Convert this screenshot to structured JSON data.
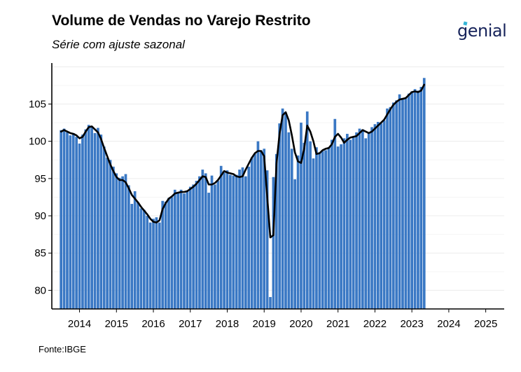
{
  "header": {
    "title": "Volume de Vendas no Varejo Restrito",
    "subtitle": "Série com ajuste sazonal",
    "logo_text": "genial"
  },
  "footer": {
    "source": "Fonte:IBGE"
  },
  "colors": {
    "bar": "#3a78c4",
    "line": "#000000",
    "logo": "#16235a",
    "logo_accent": "#33b5d6"
  },
  "chart_data": {
    "type": "bar",
    "title": "Volume de Vendas no Varejo Restrito",
    "subtitle": "Série com ajuste sazonal",
    "xlabel": "",
    "ylabel": "",
    "ylim": [
      77.5,
      110.5
    ],
    "xlim": [
      2013.25,
      2025.5
    ],
    "y_ticks": [
      80,
      85,
      90,
      95,
      100,
      105
    ],
    "x_ticks": [
      2014,
      2015,
      2016,
      2017,
      2018,
      2019,
      2020,
      2021,
      2022,
      2023,
      2024,
      2025
    ],
    "grid": true,
    "legend": "none",
    "start": "2013-07",
    "series": [
      {
        "type": "bar",
        "values": [
          101.5,
          101.7,
          101.2,
          100.8,
          101.1,
          100.6,
          99.7,
          100.9,
          101.6,
          102.2,
          102.0,
          101.1,
          101.8,
          100.9,
          99.3,
          97.8,
          97.5,
          96.6,
          95.7,
          95.1,
          95.3,
          95.6,
          94.1,
          91.6,
          93.3,
          91.8,
          91.0,
          90.8,
          90.0,
          89.1,
          89.6,
          89.8,
          89.1,
          92.0,
          91.9,
          92.4,
          92.5,
          93.5,
          93.1,
          93.5,
          93.0,
          93.3,
          93.9,
          94.2,
          94.7,
          95.3,
          96.2,
          95.7,
          93.1,
          95.4,
          94.2,
          94.7,
          96.7,
          95.8,
          96.1,
          95.5,
          95.4,
          95.5,
          96.2,
          96.5,
          95.3,
          96.6,
          97.8,
          98.3,
          100.0,
          98.8,
          99.0,
          96.1,
          79.1,
          95.2,
          98.3,
          102.4,
          104.4,
          103.8,
          101.2,
          99.0,
          94.9,
          98.1,
          102.5,
          99.8,
          104.0,
          100.0,
          97.7,
          99.2,
          98.5,
          98.7,
          98.8,
          99.2,
          100.2,
          103.0,
          99.3,
          99.6,
          100.4,
          101.0,
          100.2,
          100.5,
          101.2,
          101.7,
          101.6,
          100.4,
          101.1,
          101.9,
          102.3,
          102.6,
          102.4,
          102.8,
          104.4,
          104.6,
          105.2,
          105.5,
          106.3,
          105.8,
          105.9,
          106.4,
          106.7,
          107.0,
          106.8,
          107.3,
          108.5
        ],
        "color": "#3a78c4"
      },
      {
        "type": "line",
        "values": [
          101.3,
          101.5,
          101.3,
          101.1,
          101.0,
          100.8,
          100.4,
          100.6,
          101.3,
          101.9,
          102.0,
          101.6,
          101.2,
          100.3,
          99.1,
          98.0,
          96.9,
          96.0,
          95.2,
          94.8,
          94.8,
          94.5,
          93.7,
          92.8,
          92.3,
          91.8,
          91.2,
          90.7,
          90.2,
          89.6,
          89.2,
          89.1,
          89.4,
          90.9,
          91.7,
          92.3,
          92.6,
          93.0,
          93.1,
          93.2,
          93.2,
          93.3,
          93.6,
          93.9,
          94.3,
          94.8,
          95.3,
          95.2,
          94.2,
          94.2,
          94.4,
          94.8,
          95.4,
          96.0,
          95.8,
          95.7,
          95.6,
          95.3,
          95.2,
          95.3,
          96.2,
          97.0,
          97.8,
          98.4,
          98.7,
          98.7,
          98.0,
          92.5,
          87.1,
          87.4,
          97.0,
          101.0,
          103.5,
          103.9,
          102.8,
          100.8,
          98.5,
          97.3,
          97.1,
          99.0,
          102.1,
          101.3,
          100.0,
          98.3,
          98.4,
          98.8,
          99.0,
          99.1,
          99.6,
          100.6,
          101.0,
          100.5,
          99.8,
          100.2,
          100.5,
          100.6,
          100.7,
          101.1,
          101.5,
          101.3,
          101.1,
          101.3,
          101.7,
          102.1,
          102.5,
          102.9,
          103.6,
          104.3,
          104.9,
          105.3,
          105.6,
          105.7,
          105.8,
          106.2,
          106.6,
          106.7,
          106.6,
          106.8,
          107.6
        ],
        "color": "#000000"
      }
    ]
  }
}
